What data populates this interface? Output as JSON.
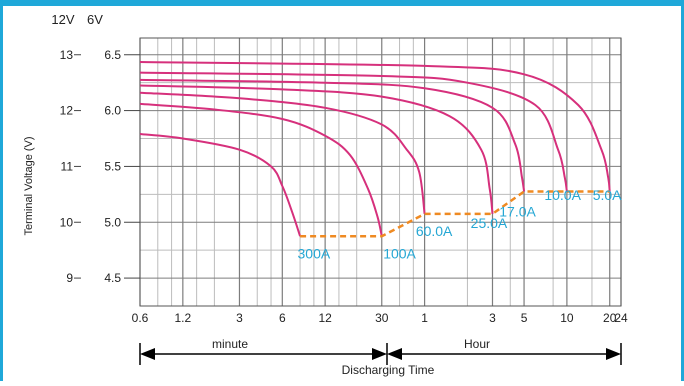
{
  "chart_data": {
    "type": "line",
    "y_left_header": "12V",
    "y_right_header": "6V",
    "ylabel": "Terminal Voltage (V)",
    "ylim_12v": [
      8.5,
      13.3
    ],
    "yticks_12v": [
      "13",
      "12",
      "11",
      "10",
      "9"
    ],
    "yticks_6v": [
      "6.5",
      "6.0",
      "5.5",
      "5.0",
      "4.5"
    ],
    "yticks_12v_values": [
      13,
      12,
      11,
      10,
      9
    ],
    "yticks_6v_values": [
      13,
      12,
      11,
      10,
      9
    ],
    "x_tick_labels": [
      "0.6",
      "1.2",
      "3",
      "6",
      "12",
      "30",
      "1",
      "3",
      "5",
      "10",
      "20",
      "24"
    ],
    "x_tick_minutes": [
      0.6,
      1.2,
      3,
      6,
      12,
      30,
      60,
      180,
      300,
      600,
      1200,
      1440
    ],
    "x_minor_minutes": [
      0.8,
      1,
      1.5,
      2,
      4,
      5,
      8,
      10,
      15,
      20,
      40,
      50,
      120,
      240,
      480,
      900
    ],
    "x_log_scale": true,
    "xlim_minutes": [
      0.6,
      1440
    ],
    "minute_label": "minute",
    "hour_label": "Hour",
    "xlabel": "Discharging Time",
    "grid": true,
    "series": [
      {
        "name": "300A",
        "points": [
          [
            0.6,
            11.58
          ],
          [
            1.2,
            11.5
          ],
          [
            3,
            11.3
          ],
          [
            5,
            11.0
          ],
          [
            6,
            10.65
          ],
          [
            7,
            10.2
          ],
          [
            8,
            9.75
          ]
        ]
      },
      {
        "name": "100A",
        "points": [
          [
            0.6,
            12.12
          ],
          [
            2,
            12.02
          ],
          [
            6,
            11.85
          ],
          [
            12,
            11.55
          ],
          [
            18,
            11.2
          ],
          [
            24,
            10.6
          ],
          [
            28,
            10.1
          ],
          [
            30,
            9.75
          ]
        ]
      },
      {
        "name": "60.0A",
        "points": [
          [
            0.6,
            12.32
          ],
          [
            3,
            12.22
          ],
          [
            12,
            12.05
          ],
          [
            30,
            11.75
          ],
          [
            45,
            11.3
          ],
          [
            55,
            10.9
          ],
          [
            60,
            10.15
          ]
        ]
      },
      {
        "name": "25.0A",
        "points": [
          [
            0.6,
            12.45
          ],
          [
            6,
            12.38
          ],
          [
            30,
            12.25
          ],
          [
            90,
            11.9
          ],
          [
            150,
            11.3
          ],
          [
            172,
            10.6
          ],
          [
            180,
            10.15
          ]
        ]
      },
      {
        "name": "17.0A",
        "points": [
          [
            0.6,
            12.55
          ],
          [
            12,
            12.5
          ],
          [
            60,
            12.4
          ],
          [
            180,
            12.05
          ],
          [
            260,
            11.4
          ],
          [
            290,
            10.8
          ],
          [
            300,
            10.55
          ]
        ]
      },
      {
        "name": "10.0A",
        "points": [
          [
            0.6,
            12.68
          ],
          [
            30,
            12.62
          ],
          [
            120,
            12.5
          ],
          [
            360,
            12.1
          ],
          [
            520,
            11.3
          ],
          [
            580,
            10.8
          ],
          [
            600,
            10.55
          ]
        ]
      },
      {
        "name": "5.0A",
        "points": [
          [
            0.6,
            12.87
          ],
          [
            60,
            12.8
          ],
          [
            300,
            12.65
          ],
          [
            720,
            12.1
          ],
          [
            1050,
            11.3
          ],
          [
            1170,
            10.8
          ],
          [
            1200,
            10.55
          ]
        ]
      }
    ],
    "cutoff_line": {
      "style": "dashed",
      "points": [
        [
          8,
          9.75
        ],
        [
          30,
          9.75
        ],
        [
          60,
          10.15
        ],
        [
          180,
          10.15
        ],
        [
          300,
          10.55
        ],
        [
          1200,
          10.55
        ]
      ]
    },
    "labels": [
      {
        "text": "300A",
        "x": 10,
        "y": 9.35
      },
      {
        "text": "100A",
        "x": 40,
        "y": 9.35
      },
      {
        "text": "60.0A",
        "x": 70,
        "y": 9.75
      },
      {
        "text": "25.0A",
        "x": 170,
        "y": 9.9
      },
      {
        "text": "17.0A",
        "x": 270,
        "y": 10.1
      },
      {
        "text": "10.0A",
        "x": 560,
        "y": 10.4
      },
      {
        "text": "5.0A",
        "x": 1150,
        "y": 10.4
      }
    ]
  },
  "colors": {
    "frame": "#1fa8d9",
    "curve": "#d6307c",
    "cutoff": "#ef8a22",
    "label": "#25a7d4",
    "grid_major": "#7d7d7d",
    "grid_minor": "#bdbdbd",
    "axis_text": "#222222"
  }
}
